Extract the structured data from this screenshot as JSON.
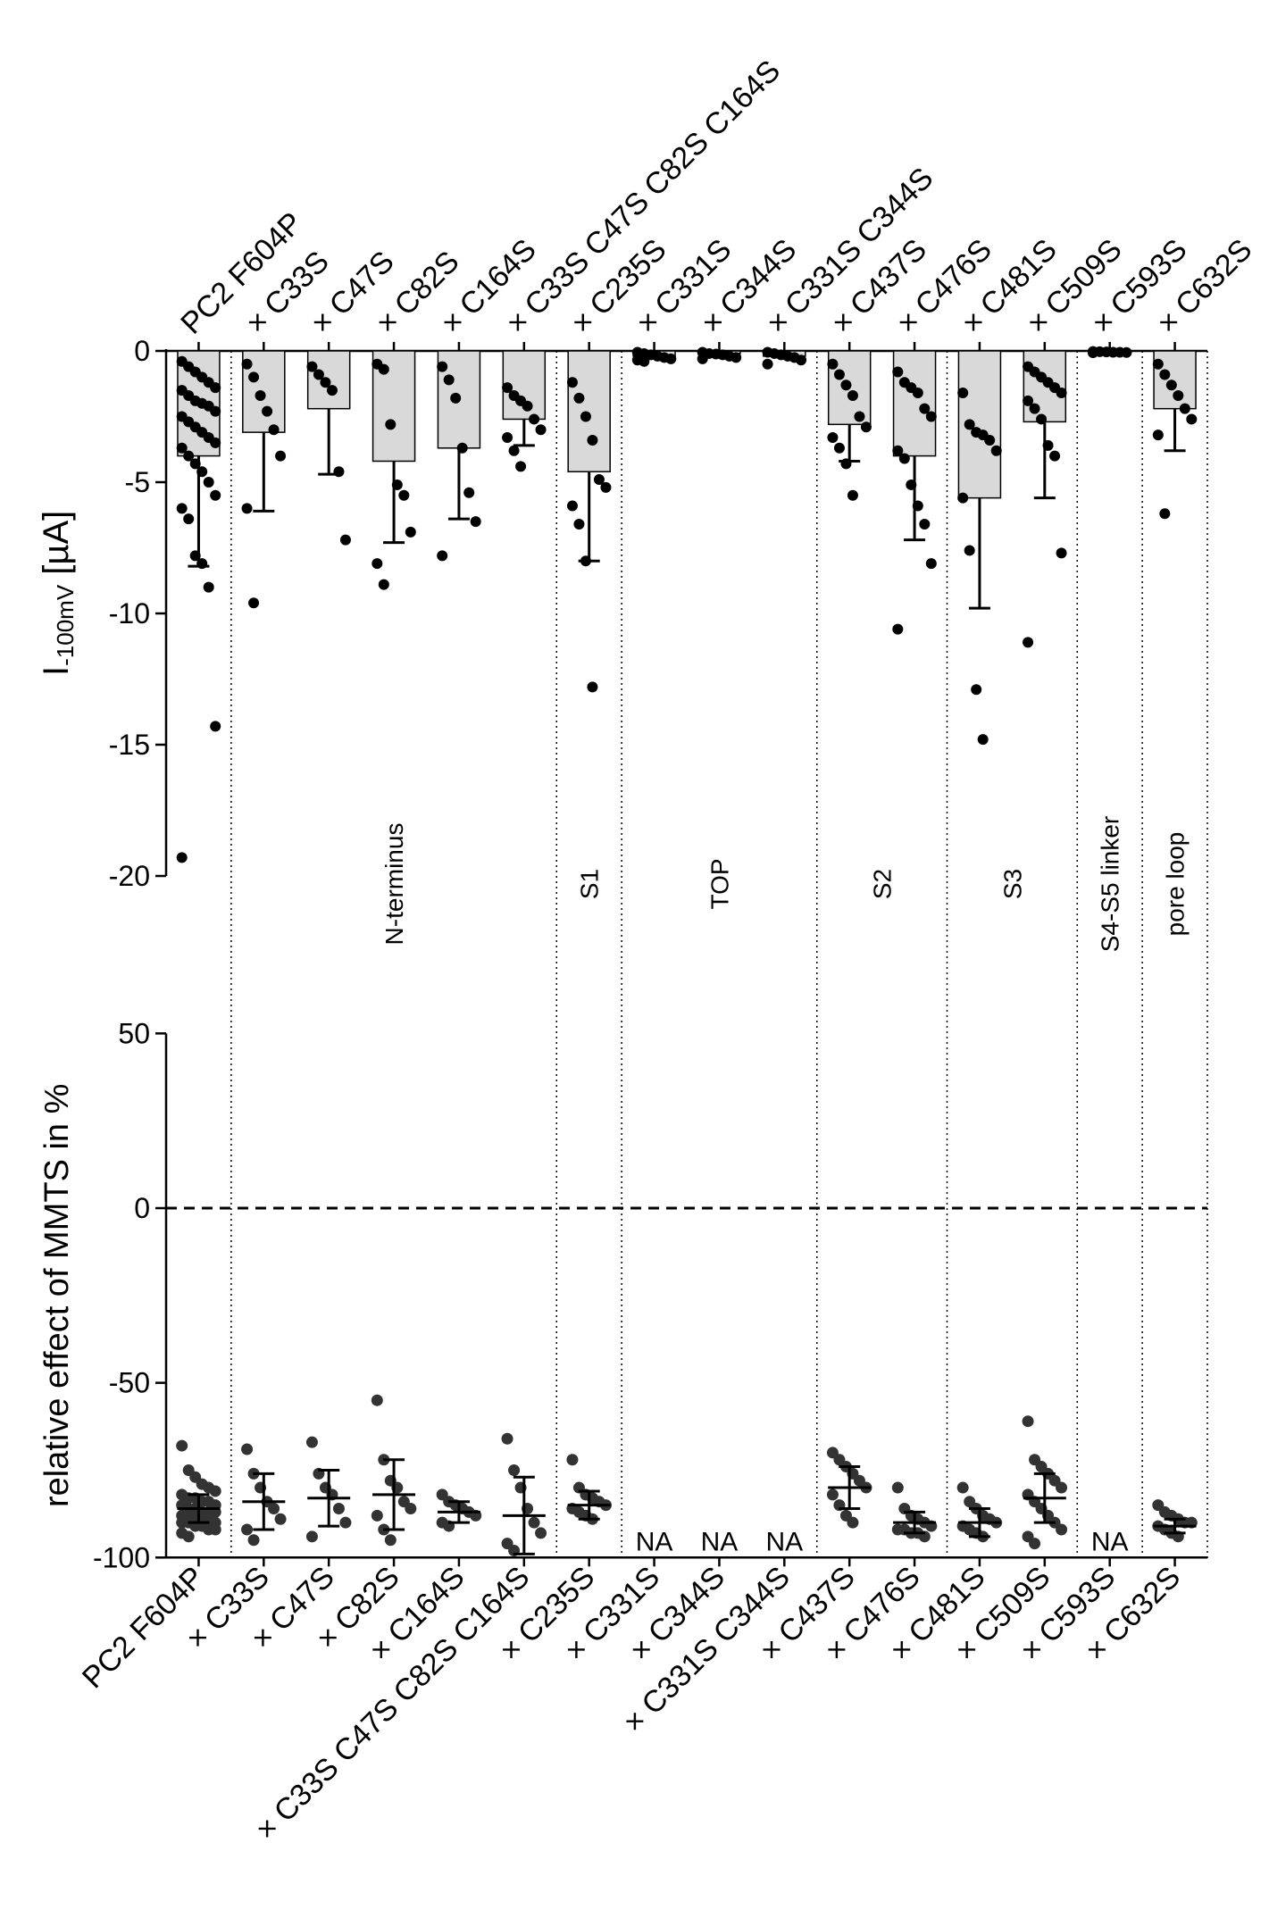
{
  "chart_data": [
    {
      "type": "bar",
      "panel": "top",
      "ylabel_main": "I",
      "ylabel_sub": "-100mV",
      "ylabel_unit": " [µA]",
      "ylim": [
        -20,
        0
      ],
      "yticks": [
        0,
        -5,
        -10,
        -15,
        -20
      ],
      "ytick_labels": [
        "0",
        "-5",
        "-10",
        "-15",
        "-20"
      ],
      "categories": [
        "PC2 F604P",
        "× C33S",
        "× C47S",
        "× C82S",
        "× C164S",
        "× C33S C47S C82S C164S",
        "× C235S",
        "× C331S",
        "× C344S",
        "× C331S C344S",
        "× C437S",
        "× C476S",
        "× C481S",
        "× C509S",
        "× C593S",
        "× C632S"
      ],
      "means": [
        -4.0,
        -3.1,
        -2.2,
        -4.2,
        -3.7,
        -2.6,
        -4.6,
        -0.2,
        -0.1,
        -0.2,
        -2.8,
        -4.0,
        -5.6,
        -2.7,
        -0.05,
        -2.2
      ],
      "sd": [
        4.2,
        3.0,
        2.5,
        3.1,
        2.7,
        1.0,
        3.4,
        0.1,
        0.1,
        0.1,
        1.4,
        3.2,
        4.2,
        2.9,
        0.02,
        1.6
      ],
      "points": [
        [
          -0.4,
          -0.6,
          -0.8,
          -1.0,
          -1.2,
          -1.4,
          -1.5,
          -1.7,
          -1.9,
          -2.0,
          -2.1,
          -2.3,
          -2.5,
          -2.7,
          -2.9,
          -3.1,
          -3.3,
          -3.5,
          -3.7,
          -4.0,
          -4.3,
          -4.6,
          -5.0,
          -5.5,
          -6.0,
          -6.4,
          -7.8,
          -8.1,
          -9.0,
          -14.3,
          -19.3
        ],
        [
          -0.5,
          -1.0,
          -1.7,
          -2.3,
          -3.0,
          -4.0,
          -6.0,
          -9.6
        ],
        [
          -0.6,
          -0.9,
          -1.2,
          -1.5,
          -4.6,
          -7.2
        ],
        [
          -0.5,
          -0.7,
          -2.8,
          -5.1,
          -5.5,
          -6.9,
          -8.1,
          -8.9
        ],
        [
          -0.6,
          -1.1,
          -1.8,
          -3.7,
          -5.4,
          -6.5,
          -7.8
        ],
        [
          -1.4,
          -1.7,
          -1.9,
          -2.1,
          -2.6,
          -3.0,
          -3.3,
          -3.8,
          -4.4
        ],
        [
          -1.2,
          -1.8,
          -2.5,
          -3.4,
          -4.9,
          -5.2,
          -5.9,
          -6.6,
          -8.0,
          -12.8
        ],
        [
          -0.05,
          -0.1,
          -0.15,
          -0.2,
          -0.25,
          -0.3,
          -0.35,
          -0.4
        ],
        [
          -0.05,
          -0.1,
          -0.12,
          -0.15,
          -0.2,
          -0.25,
          -0.3
        ],
        [
          -0.05,
          -0.1,
          -0.15,
          -0.2,
          -0.25,
          -0.35,
          -0.5
        ],
        [
          -0.5,
          -0.9,
          -1.3,
          -1.7,
          -2.5,
          -2.9,
          -3.3,
          -3.7,
          -4.3,
          -5.5
        ],
        [
          -0.8,
          -1.2,
          -1.4,
          -1.6,
          -2.2,
          -2.5,
          -3.8,
          -4.1,
          -5.1,
          -5.9,
          -6.6,
          -8.1,
          -10.6
        ],
        [
          -1.6,
          -2.8,
          -3.1,
          -3.2,
          -3.4,
          -3.8,
          -5.6,
          -7.6,
          -12.9,
          -14.8
        ],
        [
          -0.6,
          -0.8,
          -1.0,
          -1.2,
          -1.4,
          -1.6,
          -1.9,
          -2.2,
          -2.6,
          -3.6,
          -4.0,
          -7.7,
          -11.1
        ],
        [
          -0.02,
          -0.03,
          -0.04,
          -0.05,
          -0.05,
          -0.06,
          -0.07
        ],
        [
          -0.5,
          -0.9,
          -1.3,
          -1.7,
          -2.2,
          -2.6,
          -3.2,
          -6.2
        ]
      ],
      "region_labels": [
        {
          "text": "N-terminus",
          "from": 1,
          "to": 5
        },
        {
          "text": "S1",
          "from": 6,
          "to": 6
        },
        {
          "text": "TOP",
          "from": 7,
          "to": 9
        },
        {
          "text": "S2",
          "from": 10,
          "to": 11
        },
        {
          "text": "S3",
          "from": 12,
          "to": 13
        },
        {
          "text": "S4-S5 linker",
          "from": 14,
          "to": 14
        },
        {
          "text": "pore loop",
          "from": 15,
          "to": 15
        }
      ],
      "dividers_after": [
        0,
        5,
        6,
        9,
        11,
        13,
        14,
        15
      ]
    },
    {
      "type": "scatter",
      "panel": "bottom",
      "ylabel": "relative effect of MMTS in %",
      "ylim": [
        -100,
        50
      ],
      "yticks": [
        50,
        0,
        -50,
        -100
      ],
      "ytick_labels": [
        "50",
        "0",
        "-50",
        "-100"
      ],
      "reference_line": 0,
      "categories": [
        "PC2 F604P",
        "× C33S",
        "× C47S",
        "× C82S",
        "× C164S",
        "× C33S C47S C82S C164S",
        "× C235S",
        "× C331S",
        "× C344S",
        "× C331S C344S",
        "× C437S",
        "× C476S",
        "× C481S",
        "× C509S",
        "× C593S",
        "× C632S"
      ],
      "means": [
        -86,
        -84,
        -83,
        -82,
        -87,
        -88,
        -85,
        null,
        null,
        null,
        -80,
        -90,
        -90,
        -83,
        null,
        -91
      ],
      "sd": [
        4,
        8,
        8,
        10,
        3,
        11,
        4,
        null,
        null,
        null,
        6,
        3,
        4,
        7,
        null,
        2
      ],
      "points": [
        [
          -68,
          -75,
          -77,
          -79,
          -80,
          -81,
          -82,
          -83,
          -83,
          -84,
          -84,
          -85,
          -85,
          -86,
          -86,
          -87,
          -87,
          -87,
          -88,
          -88,
          -88,
          -89,
          -89,
          -90,
          -90,
          -90,
          -91,
          -91,
          -92,
          -92,
          -93,
          -94
        ],
        [
          -69,
          -76,
          -80,
          -84,
          -86,
          -89,
          -92,
          -95
        ],
        [
          -67,
          -76,
          -80,
          -82,
          -86,
          -90,
          -94
        ],
        [
          -55,
          -72,
          -78,
          -80,
          -84,
          -86,
          -88,
          -92,
          -95
        ],
        [
          -82,
          -84,
          -85,
          -86,
          -87,
          -88,
          -90,
          -91
        ],
        [
          -66,
          -75,
          -80,
          -86,
          -90,
          -93,
          -96,
          -98
        ],
        [
          -72,
          -80,
          -82,
          -83,
          -84,
          -85,
          -86,
          -87,
          -88,
          -89
        ],
        [],
        [],
        [],
        [
          -70,
          -72,
          -74,
          -76,
          -78,
          -80,
          -82,
          -85,
          -88,
          -90
        ],
        [
          -80,
          -86,
          -88,
          -89,
          -90,
          -91,
          -92,
          -92,
          -93,
          -93,
          -94
        ],
        [
          -80,
          -84,
          -86,
          -88,
          -89,
          -90,
          -91,
          -92,
          -93,
          -94
        ],
        [
          -61,
          -72,
          -74,
          -76,
          -78,
          -80,
          -82,
          -84,
          -86,
          -88,
          -90,
          -92,
          -94,
          -96
        ],
        [],
        [
          -85,
          -87,
          -88,
          -89,
          -90,
          -90,
          -91,
          -92,
          -93,
          -94
        ]
      ],
      "na_label": "NA",
      "na_indices": [
        7,
        8,
        9,
        14
      ]
    }
  ]
}
